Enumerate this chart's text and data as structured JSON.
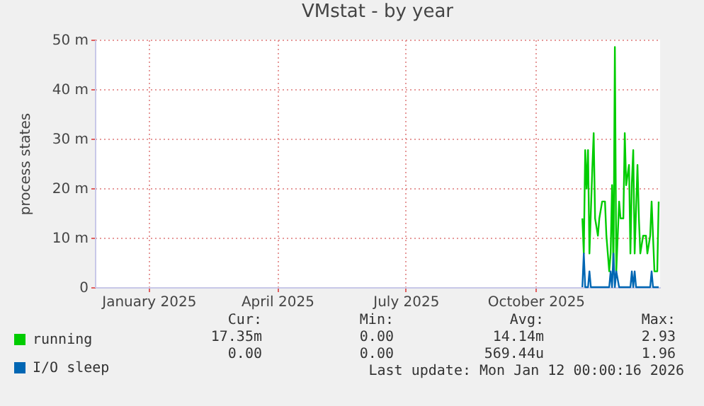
{
  "chart_data": {
    "type": "line",
    "title": "VMstat - by year",
    "ylabel": "process states",
    "xlim": [
      "2024-12-08",
      "2026-01-12"
    ],
    "xticks": [
      {
        "value": "2025-01-15",
        "label": "January 2025"
      },
      {
        "value": "2025-04-16",
        "label": "April 2025"
      },
      {
        "value": "2025-07-16",
        "label": "July 2025"
      },
      {
        "value": "2025-10-16",
        "label": "October 2025"
      }
    ],
    "ylim": [
      0,
      50
    ],
    "yticks": [
      0,
      {
        "value": 10,
        "label": "10 m"
      },
      {
        "value": 20,
        "label": "20 m"
      },
      {
        "value": 30,
        "label": "30 m"
      },
      {
        "value": 40,
        "label": "40 m"
      },
      {
        "value": 50,
        "label": "50 m"
      }
    ],
    "grid": true,
    "legend": "bottom left",
    "marker": "none",
    "line_style": "solid",
    "series": [
      {
        "name": "running",
        "color": "#00cc00",
        "x": [
          "2025-11-18",
          "2025-11-19",
          "2025-11-20",
          "2025-11-21",
          "2025-11-22",
          "2025-11-23",
          "2025-11-25",
          "2025-11-26",
          "2025-11-27",
          "2025-11-29",
          "2025-11-30",
          "2025-12-02",
          "2025-12-04",
          "2025-12-05",
          "2025-12-07",
          "2025-12-08",
          "2025-12-09",
          "2025-12-10",
          "2025-12-11",
          "2025-12-12",
          "2025-12-14",
          "2025-12-15",
          "2025-12-17",
          "2025-12-18",
          "2025-12-19",
          "2025-12-21",
          "2025-12-22",
          "2025-12-23",
          "2025-12-24",
          "2025-12-25",
          "2025-12-27",
          "2025-12-28",
          "2025-12-29",
          "2025-12-31",
          "2026-01-02",
          "2026-01-03",
          "2026-01-05",
          "2026-01-06",
          "2026-01-08",
          "2026-01-10",
          "2026-01-11"
        ],
        "values": [
          13.9,
          6.8,
          27.7,
          19.9,
          27.7,
          6.8,
          23.7,
          31.1,
          13.9,
          10.4,
          13.9,
          17.3,
          17.3,
          10.4,
          3.2,
          6.8,
          20.6,
          3.2,
          48.5,
          3.2,
          17.3,
          13.9,
          13.9,
          31.1,
          20.6,
          24.7,
          6.8,
          21,
          27.7,
          6.8,
          24.7,
          13.9,
          6.8,
          10.4,
          10.4,
          6.8,
          10.4,
          17.3,
          3.2,
          3.2,
          17.3
        ]
      },
      {
        "name": "I/O sleep",
        "color": "#0066b3",
        "x": [
          "2025-11-18",
          "2025-11-19",
          "2025-11-20",
          "2025-11-22",
          "2025-11-23",
          "2025-11-24",
          "2025-12-07",
          "2025-12-08",
          "2025-12-09",
          "2025-12-10",
          "2025-12-11",
          "2025-12-12",
          "2025-12-14",
          "2025-12-22",
          "2025-12-23",
          "2025-12-24",
          "2025-12-25",
          "2025-12-26",
          "2026-01-05",
          "2026-01-06",
          "2026-01-07",
          "2026-01-11"
        ],
        "values": [
          0,
          6.8,
          0,
          0,
          3.2,
          0,
          0,
          3.2,
          0,
          6.8,
          0,
          3.2,
          0,
          0,
          3.2,
          0,
          3.2,
          0,
          0,
          3.2,
          0,
          0
        ]
      }
    ],
    "annotations": [
      "Cur:",
      "Min:",
      "Avg:",
      "Max:",
      "17.35m",
      "0.00",
      "14.14m",
      "2.93",
      "0.00",
      "0.00",
      "569.44u",
      "1.96",
      "Last update: Mon Jan 12 00:00:16 2026"
    ]
  }
}
